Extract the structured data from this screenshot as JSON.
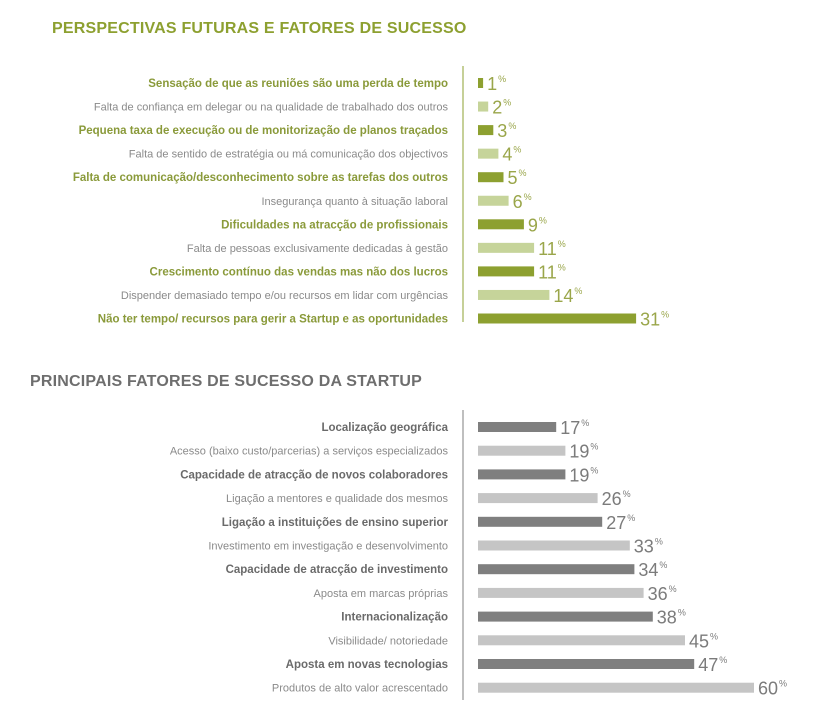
{
  "colors": {
    "green_dark": "#8da030",
    "green_light": "#c6d49a",
    "green_text": "#9aa64a",
    "gray_dark": "#7f7f7f",
    "gray_light": "#c5c5c5",
    "gray_text": "#7b7b7b",
    "gray_label": "#6a6a6a",
    "green_label": "#8a9a3a"
  },
  "chart_data": [
    {
      "type": "bar",
      "orientation": "horizontal",
      "title": "PERSPECTIVAS FUTURAS E FATORES DE SUCESSO",
      "value_suffix": "%",
      "categories": [
        "Sensação de que as reuniões são uma perda de tempo",
        "Falta de confiança em delegar ou na qualidade de trabalhado dos outros",
        "Pequena taxa de execução ou de monitorização de planos traçados",
        "Falta de sentido de estratégia ou má comunicação dos objectivos",
        "Falta de comunicação/desconhecimento sobre as tarefas dos outros",
        "Insegurança quanto à situação laboral",
        "Dificuldades na atracção de profissionais",
        "Falta de pessoas exclusivamente dedicadas à gestão",
        "Crescimento contínuo das vendas mas não dos lucros",
        "Dispender demasiado tempo e/ou recursos em lidar com urgências",
        "Não ter tempo/ recursos para gerir a Startup e as oportunidades"
      ],
      "values": [
        1,
        2,
        3,
        4,
        5,
        6,
        9,
        11,
        11,
        14,
        31
      ],
      "value_labels": [
        "1",
        "2",
        "3",
        "4",
        "5",
        "6",
        "9",
        "11",
        "11",
        "14",
        "31"
      ]
    },
    {
      "type": "bar",
      "orientation": "horizontal",
      "title": "PRINCIPAIS FATORES DE SUCESSO DA STARTUP",
      "value_suffix": "%",
      "categories": [
        "Localização geográfica",
        "Acesso (baixo custo/parcerias) a serviços especializados",
        "Capacidade de atracção de novos colaboradores",
        "Ligação a mentores e qualidade dos mesmos",
        "Ligação a instituições de ensino superior",
        "Investimento em investigação e desenvolvimento",
        "Capacidade de atracção de investimento",
        "Aposta em marcas próprias",
        "Internacionalização",
        "Visibilidade/ notoriedade",
        "Aposta em novas tecnologias",
        "Produtos de alto valor acrescentado"
      ],
      "values": [
        17,
        19,
        19,
        26,
        27,
        33,
        34,
        36,
        38,
        45,
        47,
        60
      ],
      "value_labels": [
        "17",
        "19",
        "19",
        "26",
        "27",
        "33",
        "34",
        "36",
        "38",
        "45",
        "47",
        "60"
      ]
    }
  ]
}
